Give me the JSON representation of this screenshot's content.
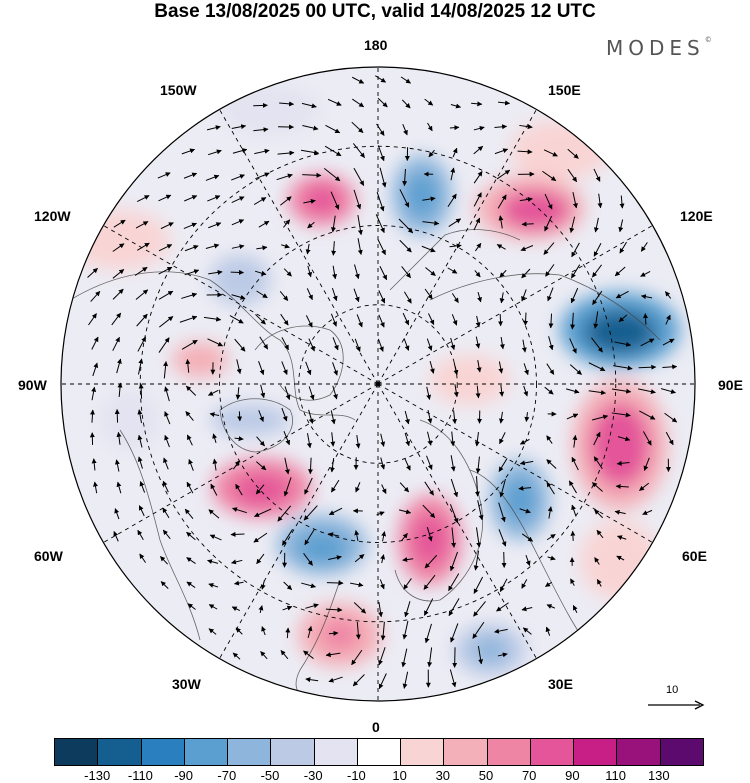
{
  "title": "Base 13/08/2025 00 UTC, valid 14/08/2025 12 UTC",
  "brand": "MODES",
  "brand_mark": "©",
  "map_labels": {
    "top": "180",
    "bottom": "0",
    "left": "90W",
    "right": "90E",
    "nw1": "150W",
    "nw2": "120W",
    "ne1": "150E",
    "ne2": "120E",
    "sw1": "60W",
    "sw2": "30W",
    "se1": "60E",
    "se2": "30E"
  },
  "reference_vector": {
    "value": "10"
  },
  "colorbar": {
    "colors": [
      "#0d3b5e",
      "#145f8f",
      "#2a7fbf",
      "#5a9fd0",
      "#8eb6dc",
      "#bccae6",
      "#e3e3f1",
      "#ffffff",
      "#f9d4d4",
      "#f4b0b8",
      "#ef85a5",
      "#e4559a",
      "#c81f86",
      "#99117a",
      "#5c0a6e"
    ],
    "tick_labels": [
      "-130",
      "-110",
      "-90",
      "-70",
      "-50",
      "-30",
      "-10",
      "10",
      "30",
      "50",
      "70",
      "90",
      "110",
      "130"
    ]
  }
}
